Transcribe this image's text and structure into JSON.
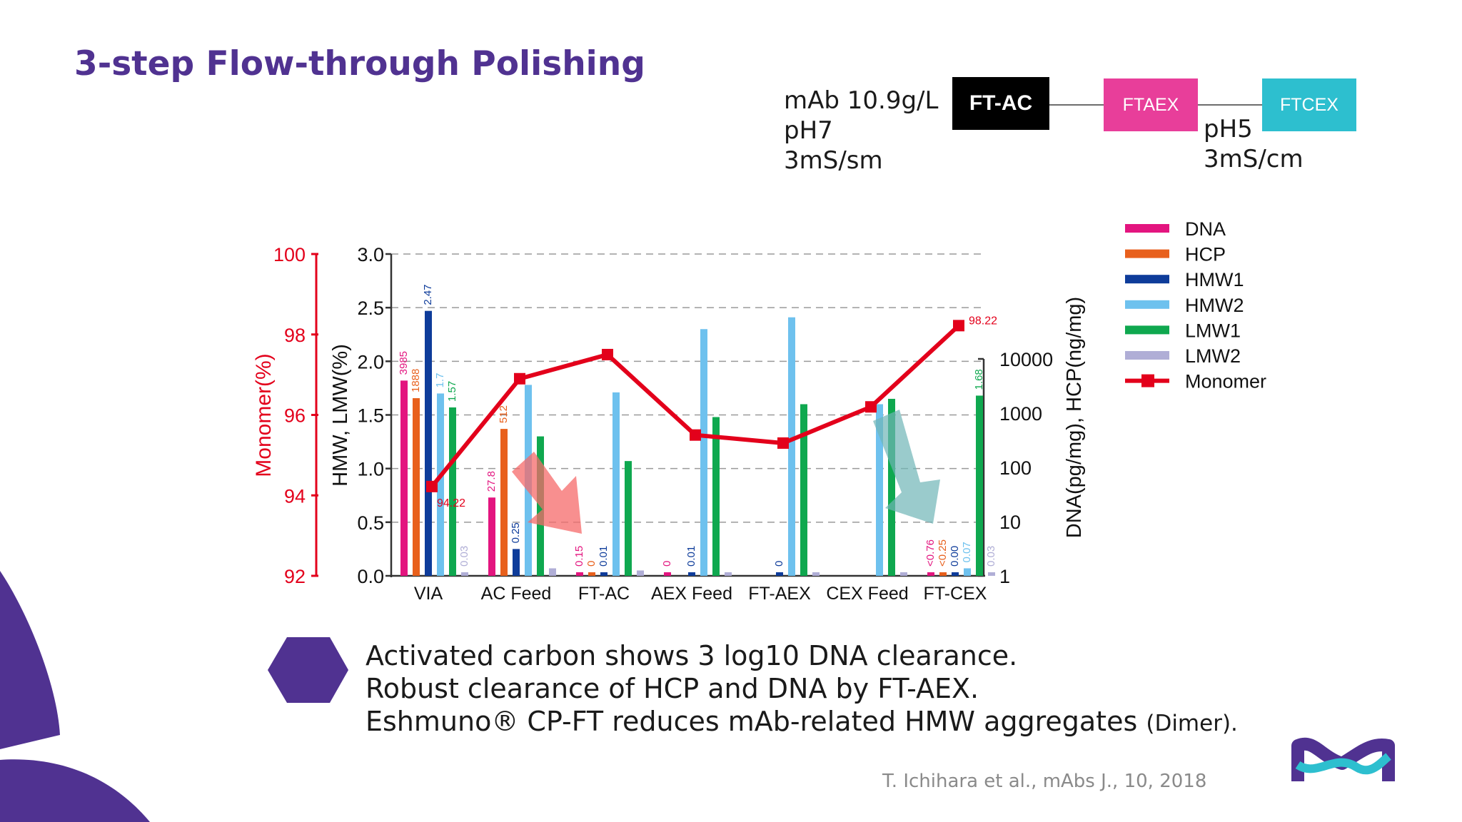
{
  "slide": {
    "title": "3-step Flow-through Polishing",
    "process": {
      "feed_line1": "mAb 10.9g/L",
      "feed_line2": "pH7",
      "feed_line3": "3mS/sm",
      "step1": "FT-AC",
      "step2": "FTAEX",
      "step3": "FTCEX",
      "cond_line1": "pH5",
      "cond_line2": "3mS/cm",
      "colors": {
        "step1": "#000000",
        "step2": "#e83e9a",
        "step3": "#2dbfcf",
        "connector": "#6d6d6d"
      }
    },
    "bullets": {
      "line1": "Activated carbon shows 3 log10 DNA clearance.",
      "line2": "Robust clearance of HCP and DNA by FT-AEX.",
      "line3_main": "Eshmuno® CP-FT reduces mAb-related HMW aggregates",
      "line3_suffix": "(Dimer)."
    },
    "citation": "T. Ichihara et al., mAbs J., 10, 2018",
    "theme_colors": {
      "purple": "#503291",
      "arrow_red": "#f66a6a",
      "arrow_teal": "#6fb5b7"
    }
  },
  "chart_data": {
    "type": "bar",
    "categories": [
      "VIA",
      "AC Feed",
      "FT-AC",
      "AEX Feed",
      "FT-AEX",
      "CEX Feed",
      "FT-CEX"
    ],
    "axes": {
      "monomer": {
        "label": "Monomer(%)",
        "ylim": [
          92,
          100
        ],
        "ticks": [
          "92",
          "94",
          "96",
          "98",
          "100"
        ],
        "color": "#e3001b"
      },
      "hmw_lmw": {
        "label": "HMW, LMW(%)",
        "ylim": [
          0,
          3
        ],
        "ticks": [
          "0.0",
          "0.5",
          "1.0",
          "1.5",
          "2.0",
          "2.5",
          "3.0"
        ]
      },
      "dna_hcp": {
        "label": "DNA(pg/mg), HCP(ng/mg)",
        "scale": "log",
        "ylim": [
          1,
          10000
        ],
        "ticks": [
          "1",
          "10",
          "100",
          "1000",
          "10000"
        ]
      }
    },
    "grid": true,
    "legend_position": "top-right",
    "series": [
      {
        "name": "DNA",
        "axis": "dna_hcp",
        "color": "#e3157f",
        "values": [
          3985,
          27.8,
          0.15,
          0,
          null,
          null,
          0.76
        ],
        "labels": [
          "3985",
          "27.8",
          "0.15",
          "0",
          "",
          "",
          "<0.76"
        ]
      },
      {
        "name": "HCP",
        "axis": "dna_hcp",
        "color": "#e8601c",
        "values": [
          1888,
          512,
          0,
          null,
          null,
          null,
          0.25
        ],
        "labels": [
          "1888",
          "512",
          "0",
          "",
          "",
          "",
          "<0.25"
        ]
      },
      {
        "name": "HMW1",
        "axis": "hmw_lmw",
        "color": "#0e3c9a",
        "values": [
          2.47,
          0.25,
          0.01,
          0.01,
          0,
          null,
          0.0
        ],
        "labels": [
          "2.47",
          "0.25",
          "0.01",
          "0.01",
          "0",
          "",
          "0.00"
        ]
      },
      {
        "name": "HMW2",
        "axis": "hmw_lmw",
        "color": "#6ec1ee",
        "values": [
          1.7,
          1.78,
          1.71,
          2.3,
          2.41,
          1.6,
          0.07
        ],
        "labels": [
          "1.7",
          "",
          "",
          "",
          "",
          "",
          "0.07"
        ]
      },
      {
        "name": "LMW1",
        "axis": "hmw_lmw",
        "color": "#0fa84f",
        "values": [
          1.57,
          1.3,
          1.07,
          1.48,
          1.6,
          1.65,
          1.68
        ],
        "labels": [
          "1.57",
          "",
          "",
          "",
          "",
          "",
          "1.68"
        ]
      },
      {
        "name": "LMW2",
        "axis": "hmw_lmw",
        "color": "#b0aed6",
        "values": [
          0.03,
          0.07,
          0.05,
          0.03,
          0.03,
          0.03,
          0.03
        ],
        "labels": [
          "0.03",
          "",
          "",
          "",
          "",
          "",
          "0.03"
        ]
      }
    ],
    "monomer": {
      "name": "Monomer",
      "color": "#e3001b",
      "values": [
        94.22,
        96.9,
        97.5,
        95.5,
        95.3,
        96.2,
        98.22
      ],
      "labels": [
        "94.22",
        "",
        "",
        "",
        "",
        "",
        "98.22"
      ]
    }
  }
}
